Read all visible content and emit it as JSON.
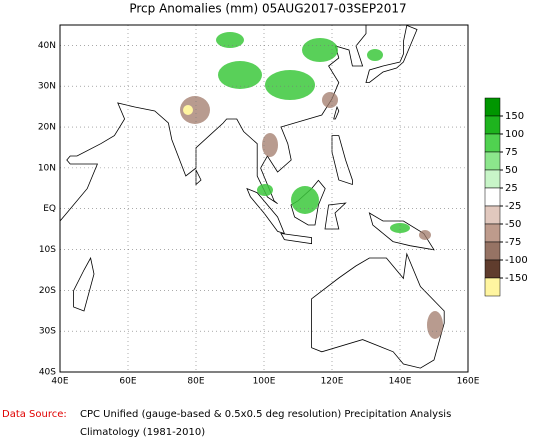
{
  "title": "Prcp Anomalies (mm) 05AUG2017-03SEP2017",
  "map": {
    "xlim": [
      40,
      160
    ],
    "ylim": [
      -40,
      45
    ],
    "xticks": [
      {
        "value": 40,
        "label": "40E"
      },
      {
        "value": 60,
        "label": "60E"
      },
      {
        "value": 80,
        "label": "80E"
      },
      {
        "value": 100,
        "label": "100E"
      },
      {
        "value": 120,
        "label": "120E"
      },
      {
        "value": 140,
        "label": "140E"
      },
      {
        "value": 160,
        "label": "160E"
      }
    ],
    "yticks": [
      {
        "value": -40,
        "label": "40S"
      },
      {
        "value": -30,
        "label": "30S"
      },
      {
        "value": -20,
        "label": "20S"
      },
      {
        "value": -10,
        "label": "10S"
      },
      {
        "value": 0,
        "label": "EQ"
      },
      {
        "value": 10,
        "label": "10N"
      },
      {
        "value": 20,
        "label": "20N"
      },
      {
        "value": 30,
        "label": "30N"
      },
      {
        "value": 40,
        "label": "40N"
      }
    ],
    "grid": true
  },
  "legend": {
    "levels": [
      150,
      100,
      75,
      50,
      25,
      -25,
      -50,
      -75,
      -100,
      -150
    ],
    "colors": [
      "#009600",
      "#1eb41e",
      "#50d250",
      "#8ce68c",
      "#c8f5c8",
      "#ffffff",
      "#e1c8be",
      "#be9b8c",
      "#967364",
      "#5f3c2d",
      "#fff5a0"
    ]
  },
  "footer": {
    "source_label": "Data Source:",
    "source_text": "CPC Unified (gauge-based & 0.5x0.5 deg resolution) Precipitation Analysis",
    "climatology": "Climatology (1981-2010)"
  }
}
